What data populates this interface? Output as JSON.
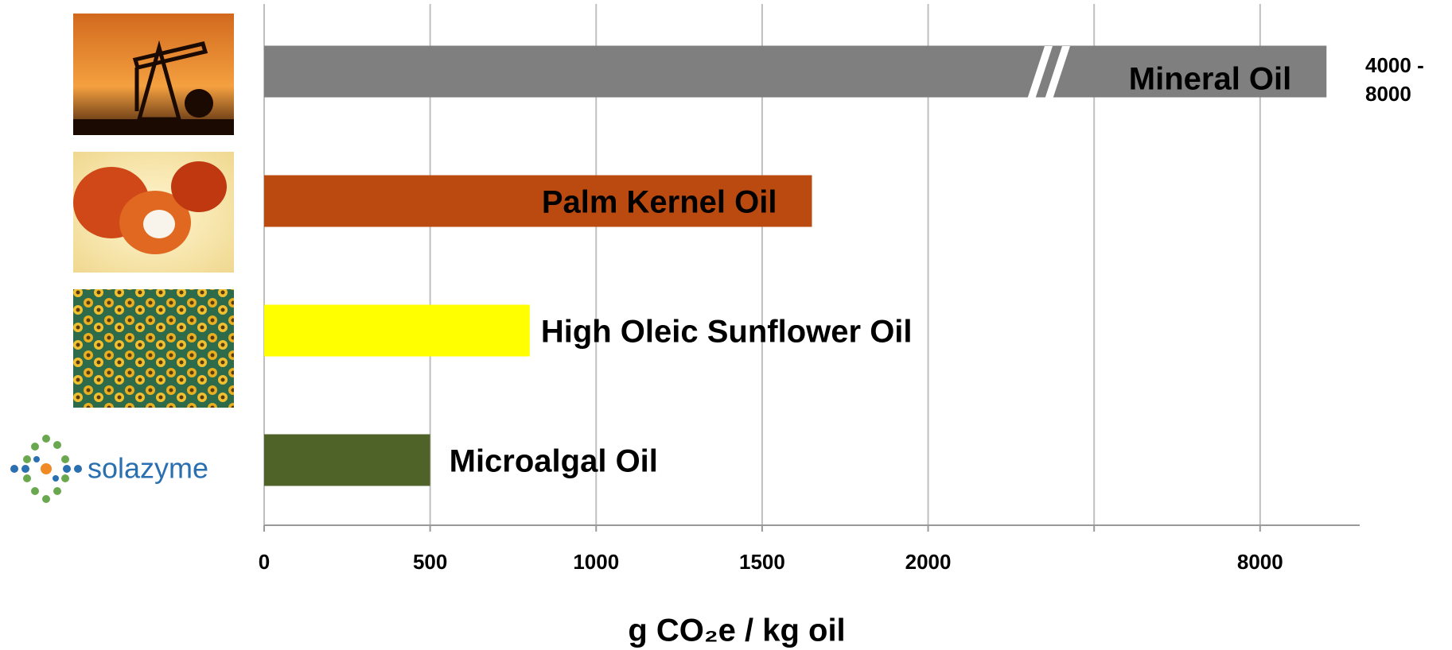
{
  "chart_data": {
    "type": "bar",
    "orientation": "horizontal",
    "categories": [
      "Mineral Oil",
      "Palm Kernel Oil",
      "High Oleic Sunflower Oil",
      "Microalgal Oil"
    ],
    "values": [
      8200,
      1650,
      800,
      500
    ],
    "colors": [
      "#7f7f7f",
      "#bb4a11",
      "#ffff00",
      "#4f6228"
    ],
    "range_label": "4000 - 8000",
    "xlabel": "g CO₂e / kg oil",
    "xlim": [
      0,
      8300
    ],
    "axis_break": [
      2000,
      7000
    ],
    "xticks": [
      0,
      500,
      1000,
      1500,
      2000,
      {
        "value": 7500,
        "label": null
      },
      8000
    ],
    "grid": true
  },
  "logo": "solazyme"
}
